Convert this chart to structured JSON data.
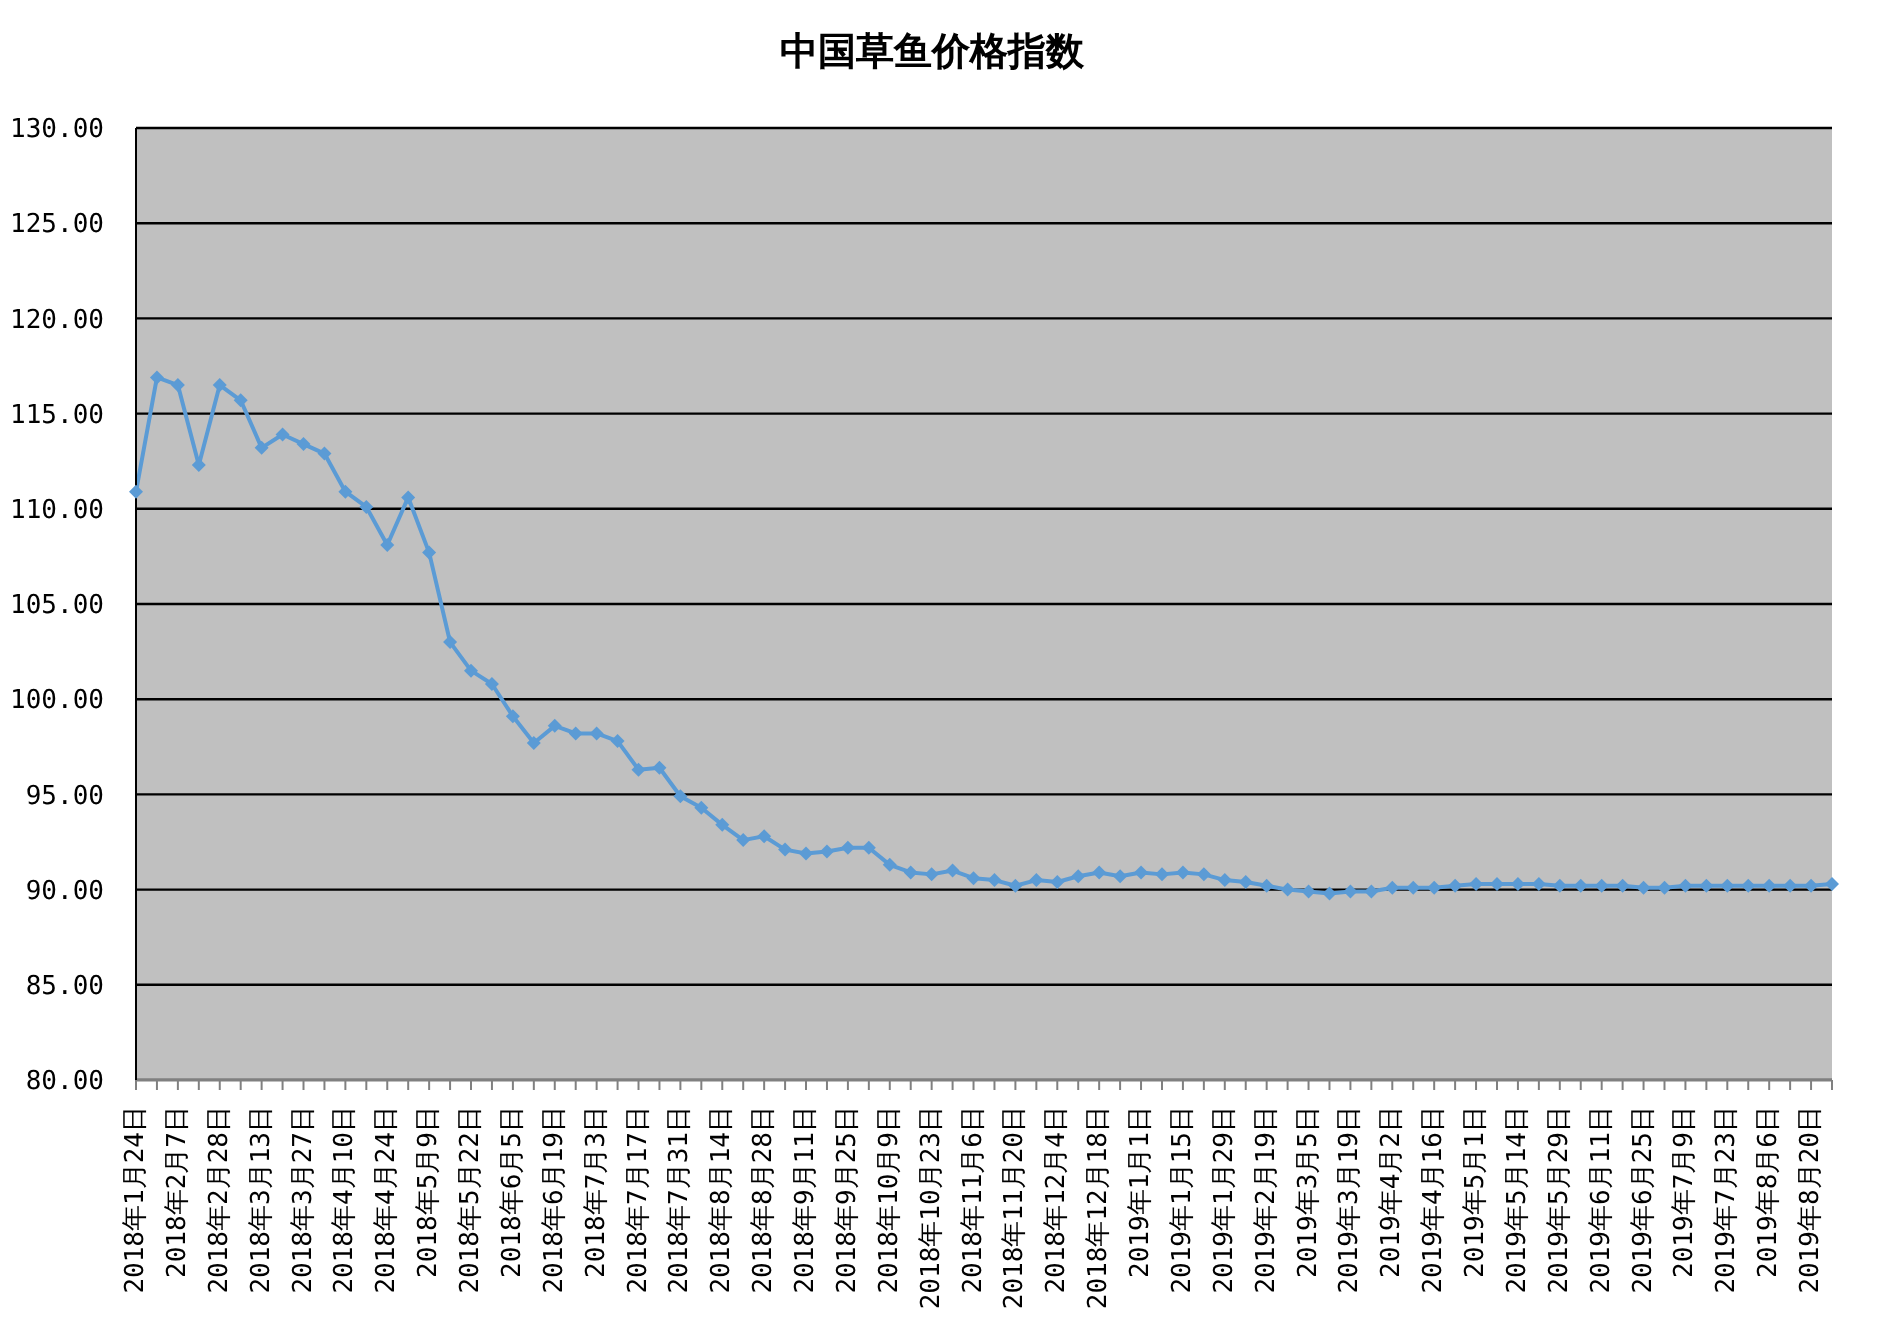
{
  "chart_data": {
    "type": "line",
    "title": "中国草鱼价格指数",
    "categories": [
      "2018年1月24日",
      null,
      "2018年2月7日",
      null,
      "2018年2月28日",
      null,
      "2018年3月13日",
      null,
      "2018年3月27日",
      null,
      "2018年4月10日",
      null,
      "2018年4月24日",
      null,
      "2018年5月9日",
      null,
      "2018年5月22日",
      null,
      "2018年6月5日",
      null,
      "2018年6月19日",
      null,
      "2018年7月3日",
      null,
      "2018年7月17日",
      null,
      "2018年7月31日",
      null,
      "2018年8月14日",
      null,
      "2018年8月28日",
      null,
      "2018年9月11日",
      null,
      "2018年9月25日",
      null,
      "2018年10月9日",
      null,
      "2018年10月23日",
      null,
      "2018年11月6日",
      null,
      "2018年11月20日",
      null,
      "2018年12月4日",
      null,
      "2018年12月18日",
      null,
      "2019年1月1日",
      null,
      "2019年1月15日",
      null,
      "2019年1月29日",
      null,
      "2019年2月19日",
      null,
      "2019年3月5日",
      null,
      "2019年3月19日",
      null,
      "2019年4月2日",
      null,
      "2019年4月16日",
      null,
      "2019年5月1日",
      null,
      "2019年5月14日",
      null,
      "2019年5月29日",
      null,
      "2019年6月11日",
      null,
      "2019年6月25日",
      null,
      "2019年7月9日",
      null,
      "2019年7月23日",
      null,
      "2019年8月6日",
      null,
      "2019年8月20日",
      null
    ],
    "values": [
      110.9,
      116.9,
      116.5,
      112.3,
      116.5,
      115.7,
      113.2,
      113.9,
      113.4,
      112.9,
      110.9,
      110.1,
      108.1,
      110.6,
      107.7,
      103.0,
      101.5,
      100.8,
      99.1,
      97.7,
      98.6,
      98.2,
      98.2,
      97.8,
      96.3,
      96.4,
      94.9,
      94.3,
      93.4,
      92.6,
      92.8,
      92.1,
      91.9,
      92.0,
      92.2,
      92.2,
      91.3,
      90.9,
      90.8,
      91.0,
      90.6,
      90.5,
      90.2,
      90.5,
      90.4,
      90.7,
      90.9,
      90.7,
      90.9,
      90.8,
      90.9,
      90.8,
      90.5,
      90.4,
      90.2,
      90.0,
      89.9,
      89.8,
      89.9,
      89.9,
      90.1,
      90.1,
      90.1,
      90.2,
      90.3,
      90.3,
      90.3,
      90.3,
      90.2,
      90.2,
      90.2,
      90.2,
      90.1,
      90.1,
      90.2,
      90.2,
      90.2,
      90.2,
      90.2,
      90.2,
      90.2,
      90.3
    ],
    "color": "#5b9bd5",
    "ylim": [
      80,
      130
    ],
    "yticks": [
      {
        "value": 80,
        "label": "80.00"
      },
      {
        "value": 85,
        "label": "85.00"
      },
      {
        "value": 90,
        "label": "90.00"
      },
      {
        "value": 95,
        "label": "95.00"
      },
      {
        "value": 100,
        "label": "100.00"
      },
      {
        "value": 105,
        "label": "105.00"
      },
      {
        "value": 110,
        "label": "110.00"
      },
      {
        "value": 115,
        "label": "115.00"
      },
      {
        "value": 120,
        "label": "120.00"
      },
      {
        "value": 125,
        "label": "125.00"
      },
      {
        "value": 130,
        "label": "130.00"
      }
    ],
    "grid": "y",
    "marker": "diamond",
    "line_style": "solid"
  }
}
